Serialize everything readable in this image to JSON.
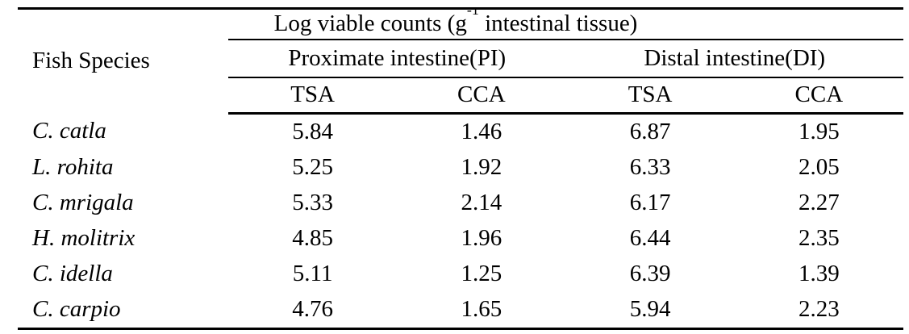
{
  "page": {
    "background": "#ffffff"
  },
  "colors": {
    "text": "#000000",
    "rule": "#000000"
  },
  "table": {
    "title_group": {
      "prefix": "Log viable counts (g",
      "superscript": "-1",
      "suffix": " intestinal tissue)"
    },
    "row_header": "Fish Species",
    "group_headers": [
      {
        "label": "Proximate intestine(PI)"
      },
      {
        "label": "Distal intestine(DI)"
      }
    ],
    "column_headers": [
      "TSA",
      "CCA",
      "TSA",
      "CCA"
    ],
    "rows": [
      {
        "species": "C. catla",
        "values": [
          "5.84",
          "1.46",
          "6.87",
          "1.95"
        ]
      },
      {
        "species": "L. rohita",
        "values": [
          "5.25",
          "1.92",
          "6.33",
          "2.05"
        ]
      },
      {
        "species": "C. mrigala",
        "values": [
          "5.33",
          "2.14",
          "6.17",
          "2.27"
        ]
      },
      {
        "species": "H. molitrix",
        "values": [
          "4.85",
          "1.96",
          "6.44",
          "2.35"
        ]
      },
      {
        "species": "C. idella",
        "values": [
          "5.11",
          "1.25",
          "6.39",
          "1.39"
        ]
      },
      {
        "species": "C. carpio",
        "values": [
          "4.76",
          "1.65",
          "5.94",
          "2.23"
        ]
      }
    ]
  },
  "chart_data": {
    "type": "table",
    "title": "Log viable counts (g-1 intestinal tissue)",
    "columns": [
      "Fish Species",
      "Proximate intestine(PI) TSA",
      "Proximate intestine(PI) CCA",
      "Distal intestine(DI) TSA",
      "Distal intestine(DI) CCA"
    ],
    "rows": [
      [
        "C. catla",
        5.84,
        1.46,
        6.87,
        1.95
      ],
      [
        "L. rohita",
        5.25,
        1.92,
        6.33,
        2.05
      ],
      [
        "C. mrigala",
        5.33,
        2.14,
        6.17,
        2.27
      ],
      [
        "H. molitrix",
        4.85,
        1.96,
        6.44,
        2.35
      ],
      [
        "C. idella",
        5.11,
        1.25,
        6.39,
        1.39
      ],
      [
        "C. carpio",
        4.76,
        1.65,
        5.94,
        2.23
      ]
    ]
  }
}
